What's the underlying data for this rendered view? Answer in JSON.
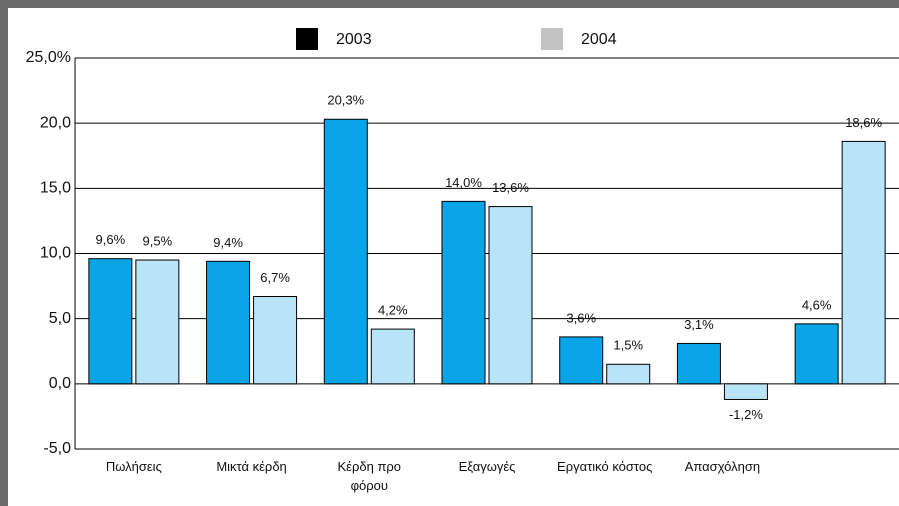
{
  "chart_data": {
    "type": "bar",
    "categories": [
      "Πωλήσεις",
      "Μικτά κέρδη",
      "Κέρδη προ φόρου",
      "Εξαγωγές",
      "Εργατικό κόστος",
      "Απασχόληση",
      null
    ],
    "series": [
      {
        "name": "2003",
        "color": "#0aa5e6",
        "legend_color": "#000000",
        "values": [
          9.6,
          9.4,
          20.3,
          14.0,
          3.6,
          3.1,
          4.6
        ],
        "value_labels": [
          "9,6%",
          "9,4%",
          "20,3%",
          "14,0%",
          "3,6%",
          "3,1%",
          "4,6%"
        ]
      },
      {
        "name": "2004",
        "color": "#b9e3f6",
        "legend_color": "#c3c3c3",
        "values": [
          9.5,
          6.7,
          4.2,
          13.6,
          1.5,
          -1.2,
          18.6
        ],
        "value_labels": [
          "9,5%",
          "6,7%",
          "4,2%",
          "13,6%",
          "1,5%",
          "-1,2%",
          "18,6%"
        ]
      }
    ],
    "ylim": [
      -5,
      25
    ],
    "yticks": [
      {
        "value": -5,
        "label": "-5,0"
      },
      {
        "value": 0,
        "label": "0,0"
      },
      {
        "value": 5,
        "label": "5,0"
      },
      {
        "value": 10,
        "label": "10,0"
      },
      {
        "value": 15,
        "label": "15,0"
      },
      {
        "value": 20,
        "label": "20,0"
      },
      {
        "value": 25,
        "label": "25,0%"
      }
    ],
    "grid": true
  }
}
